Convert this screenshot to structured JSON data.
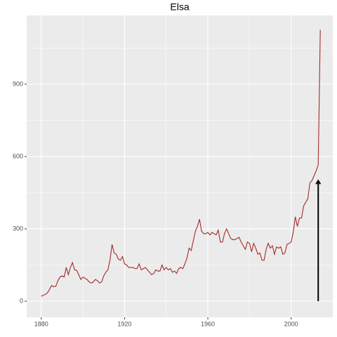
{
  "chart_data": {
    "type": "line",
    "title": "Elsa",
    "x": [
      1880,
      1881,
      1882,
      1883,
      1884,
      1885,
      1886,
      1887,
      1888,
      1889,
      1890,
      1891,
      1892,
      1893,
      1894,
      1895,
      1896,
      1897,
      1898,
      1899,
      1900,
      1901,
      1902,
      1903,
      1904,
      1905,
      1906,
      1907,
      1908,
      1909,
      1910,
      1911,
      1912,
      1913,
      1914,
      1915,
      1916,
      1917,
      1918,
      1919,
      1920,
      1921,
      1922,
      1923,
      1924,
      1925,
      1926,
      1927,
      1928,
      1929,
      1930,
      1931,
      1932,
      1933,
      1934,
      1935,
      1936,
      1937,
      1938,
      1939,
      1940,
      1941,
      1942,
      1943,
      1944,
      1945,
      1946,
      1947,
      1948,
      1949,
      1950,
      1951,
      1952,
      1953,
      1954,
      1955,
      1956,
      1957,
      1958,
      1959,
      1960,
      1961,
      1962,
      1963,
      1964,
      1965,
      1966,
      1967,
      1968,
      1969,
      1970,
      1971,
      1972,
      1973,
      1974,
      1975,
      1976,
      1977,
      1978,
      1979,
      1980,
      1981,
      1982,
      1983,
      1984,
      1985,
      1986,
      1987,
      1988,
      1989,
      1990,
      1991,
      1992,
      1993,
      1994,
      1995,
      1996,
      1997,
      1998,
      1999,
      2000,
      2001,
      2002,
      2003,
      2004,
      2005,
      2006,
      2007,
      2008,
      2009,
      2010,
      2011,
      2012,
      2013,
      2014
    ],
    "series": [
      {
        "color": "#a52a2a",
        "values": [
          20,
          25,
          28,
          35,
          50,
          65,
          60,
          62,
          85,
          100,
          105,
          100,
          140,
          110,
          140,
          160,
          130,
          128,
          110,
          90,
          100,
          95,
          90,
          80,
          75,
          80,
          90,
          85,
          75,
          80,
          105,
          120,
          130,
          170,
          235,
          200,
          195,
          175,
          170,
          185,
          155,
          150,
          140,
          140,
          140,
          135,
          135,
          155,
          130,
          135,
          140,
          130,
          120,
          110,
          115,
          130,
          125,
          125,
          150,
          130,
          140,
          130,
          135,
          120,
          125,
          115,
          135,
          140,
          135,
          155,
          180,
          220,
          210,
          250,
          290,
          310,
          340,
          290,
          280,
          280,
          285,
          275,
          285,
          280,
          275,
          295,
          245,
          245,
          280,
          300,
          280,
          260,
          255,
          255,
          260,
          265,
          245,
          230,
          215,
          245,
          240,
          205,
          240,
          220,
          195,
          200,
          170,
          170,
          215,
          240,
          220,
          230,
          195,
          225,
          220,
          225,
          195,
          200,
          235,
          240,
          245,
          285,
          350,
          310,
          345,
          345,
          395,
          410,
          425,
          490,
          500,
          520,
          540,
          565,
          1125
        ]
      }
    ],
    "arrow": {
      "x": 2013,
      "y_start": 0,
      "y_end": 500,
      "color": "#000000"
    },
    "xlim": [
      1873,
      2020
    ],
    "ylim": [
      -67,
      1185
    ],
    "xticks": [
      1880,
      1920,
      1960,
      2000
    ],
    "yticks": [
      0,
      300,
      600,
      900
    ],
    "xminorticks": [
      1900,
      1940,
      1980
    ],
    "yminorticks": [
      150,
      450,
      750,
      1050
    ],
    "grid": true
  }
}
